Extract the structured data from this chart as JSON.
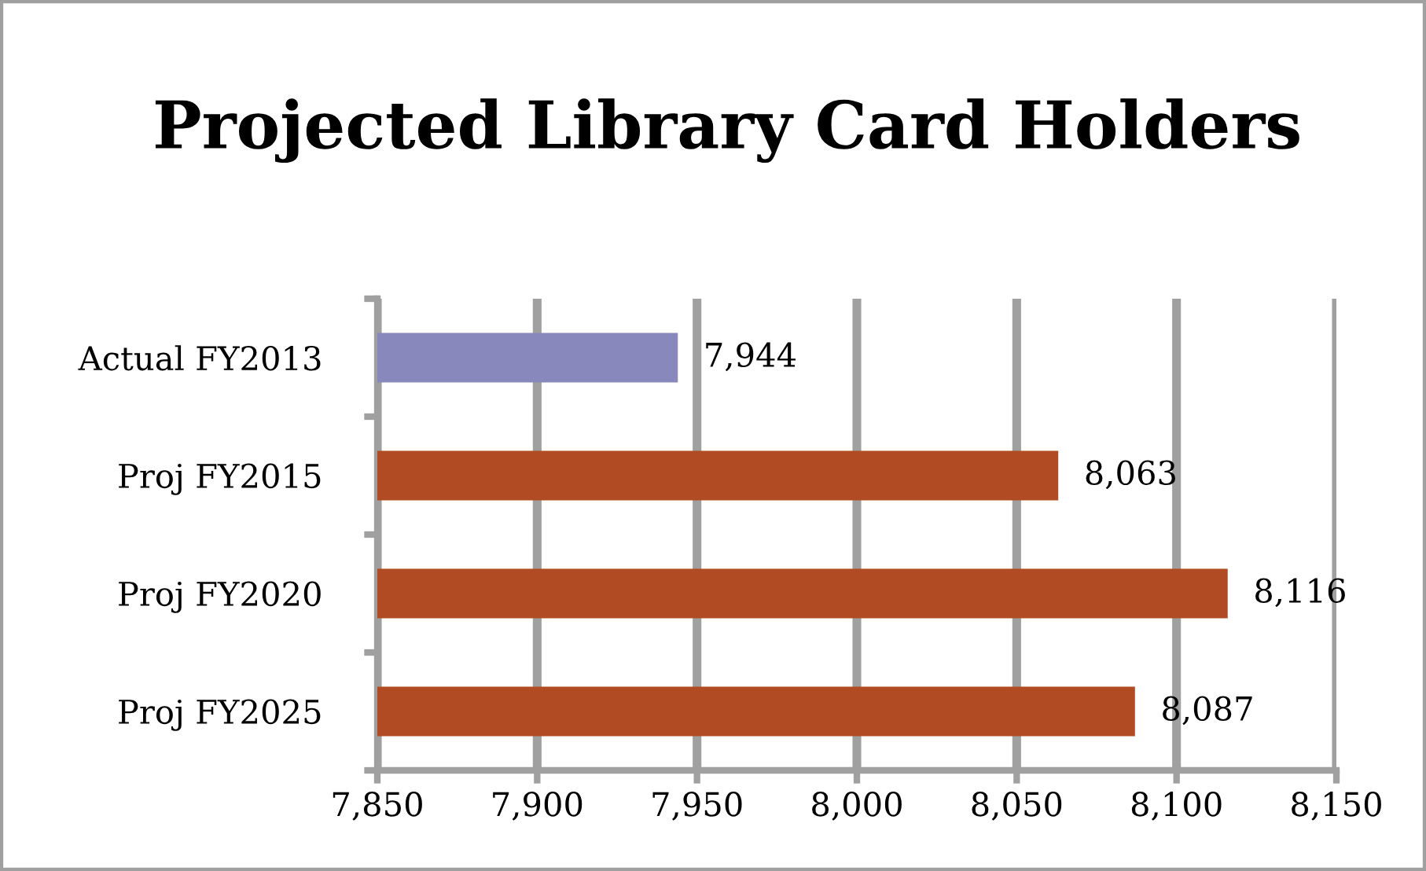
{
  "chart_data": {
    "type": "bar",
    "orientation": "horizontal",
    "title": "Projected Library Card Holders",
    "categories": [
      "Actual FY2013",
      "Proj FY2015",
      "Proj FY2020",
      "Proj FY2025"
    ],
    "values": [
      7944,
      8063,
      8116,
      8087
    ],
    "colors": [
      "#8888bd",
      "#b04b23",
      "#b04b23",
      "#b04b23"
    ],
    "value_labels": [
      "7,944",
      "8,063",
      "8,116",
      "8,087"
    ],
    "xlim": [
      7850,
      8150
    ],
    "xticks": [
      {
        "value": 7850,
        "label": "7,850"
      },
      {
        "value": 7900,
        "label": "7,900"
      },
      {
        "value": 7950,
        "label": "7,950"
      },
      {
        "value": 8000,
        "label": "8,000"
      },
      {
        "value": 8050,
        "label": "8,050"
      },
      {
        "value": 8100,
        "label": "8,100"
      },
      {
        "value": 8150,
        "label": "8,150"
      }
    ],
    "grid": "x",
    "legend": false
  }
}
